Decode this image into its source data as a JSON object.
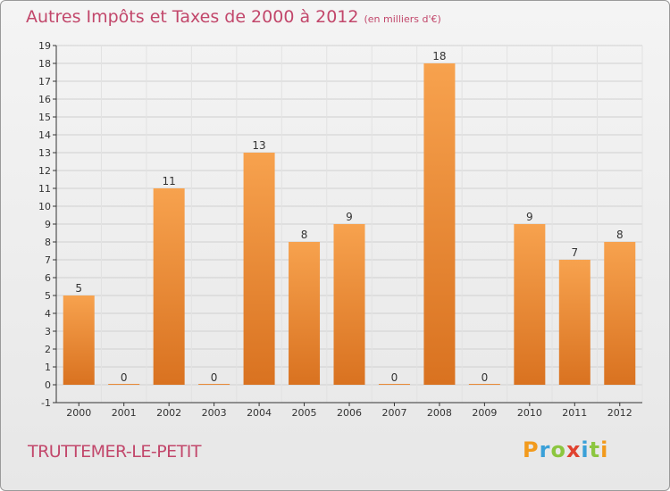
{
  "header": {
    "title": "Autres Impôts et Taxes de 2000 à 2012",
    "unit": "(en milliers d'€)"
  },
  "footer": {
    "town": "TRUTTEMER-LE-PETIT",
    "logo": "Proxiti"
  },
  "colors": {
    "title": "#c2476b",
    "bar_top": "#f7a24e",
    "bar_bottom": "#d97220",
    "axis": "#333333",
    "grid": "#d0d0d0"
  },
  "chart_data": {
    "type": "bar",
    "title": "Autres Impôts et Taxes de 2000 à 2012",
    "subtitle": "(en milliers d'€)",
    "xlabel": "",
    "ylabel": "",
    "categories": [
      "2000",
      "2001",
      "2002",
      "2003",
      "2004",
      "2005",
      "2006",
      "2007",
      "2008",
      "2009",
      "2010",
      "2011",
      "2012"
    ],
    "values": [
      5,
      0,
      11,
      0,
      13,
      8,
      9,
      0,
      18,
      0,
      9,
      7,
      8
    ],
    "ylim": [
      -1,
      19
    ],
    "yticks": [
      -1,
      0,
      1,
      2,
      3,
      4,
      5,
      6,
      7,
      8,
      9,
      10,
      11,
      12,
      13,
      14,
      15,
      16,
      17,
      18,
      19
    ],
    "data_labels": true,
    "grid": true,
    "legend": "none"
  }
}
